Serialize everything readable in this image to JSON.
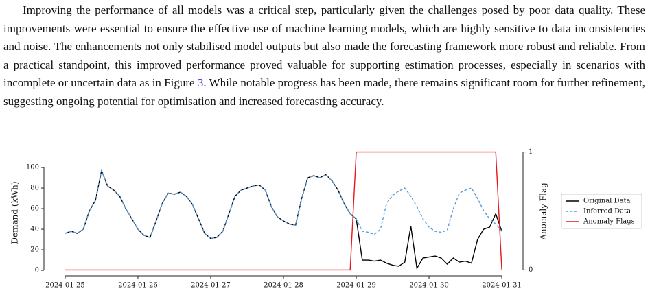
{
  "paragraph": [
    "Improving the performance of all models was a critical step, particularly given the challenges posed by poor data quality. These improvements were essential to ensure the effective use of machine learning models, which are highly sensitive to data inconsistencies and noise. The enhancements not only stabilised model outputs but also made the forecasting framework more robust and reliable. From a practical standpoint, this improved performance proved valuable for supporting estimation processes, especially in scenarios with incomplete or uncertain data as in Figure ",
    "3",
    ". While notable progress has been made, there remains significant room for further refinement, suggesting ongoing potential for optimisation and increased forecasting accuracy."
  ],
  "chart_data": {
    "type": "line",
    "ylabel": "Demand (kWh)",
    "y2label": "Anomaly Flag",
    "x": [
      0,
      2,
      4,
      6,
      8,
      10,
      12,
      14,
      16,
      18,
      20,
      22,
      24,
      26,
      28,
      30,
      32,
      34,
      36,
      38,
      40,
      42,
      44,
      46,
      48,
      50,
      52,
      54,
      56,
      58,
      60,
      62,
      64,
      66,
      68,
      70,
      72,
      74,
      76,
      78,
      80,
      82,
      84,
      86,
      88,
      90,
      92,
      94,
      96,
      98,
      100,
      102,
      104,
      106,
      108,
      110,
      112,
      114,
      116,
      118,
      120,
      122,
      124,
      126,
      128,
      130,
      132,
      134,
      136,
      138,
      140,
      142,
      144
    ],
    "xlim": [
      -7,
      151
    ],
    "xticks": [
      {
        "value": 0,
        "label": "2024-01-25"
      },
      {
        "value": 24,
        "label": "2024-01-26"
      },
      {
        "value": 48,
        "label": "2024-01-27"
      },
      {
        "value": 72,
        "label": "2024-01-28"
      },
      {
        "value": 96,
        "label": "2024-01-29"
      },
      {
        "value": 120,
        "label": "2024-01-30"
      },
      {
        "value": 144,
        "label": "2024-01-31"
      }
    ],
    "ylim": [
      -5.3,
      120.7
    ],
    "yticks": [
      0,
      20,
      40,
      60,
      80,
      100
    ],
    "y2lim": [
      -0.05,
      1.05
    ],
    "y2ticks": [
      0,
      1
    ],
    "legend": "right",
    "series": [
      {
        "name": "Original Data",
        "color": "#000000",
        "style": "solid",
        "values": [
          36,
          38,
          36,
          40,
          58,
          68,
          97,
          82,
          78,
          72,
          60,
          50,
          40,
          34,
          32,
          48,
          65,
          75,
          74,
          76,
          72,
          64,
          50,
          36,
          31,
          32,
          38,
          55,
          72,
          78,
          80,
          82,
          83,
          78,
          62,
          52,
          48,
          45,
          44,
          70,
          90,
          92,
          90,
          93,
          87,
          78,
          65,
          55,
          50,
          10,
          10,
          9,
          10,
          7,
          5,
          4,
          8,
          43,
          2,
          12,
          13,
          14,
          12,
          6,
          12,
          8,
          9,
          7,
          30,
          40,
          42,
          55,
          38
        ]
      },
      {
        "name": "Inferred Data",
        "color": "#5b9bd5",
        "style": "dashed",
        "values": [
          36,
          38,
          36,
          40,
          58,
          68,
          97,
          82,
          78,
          72,
          60,
          50,
          40,
          34,
          32,
          48,
          65,
          75,
          74,
          76,
          72,
          64,
          50,
          36,
          31,
          32,
          38,
          55,
          72,
          78,
          80,
          82,
          83,
          78,
          62,
          52,
          48,
          45,
          44,
          70,
          90,
          92,
          90,
          93,
          87,
          78,
          65,
          55,
          50,
          38,
          37,
          35,
          40,
          65,
          73,
          77,
          80,
          72,
          62,
          50,
          42,
          38,
          37,
          39,
          60,
          75,
          78,
          80,
          70,
          58,
          50,
          45,
          38
        ]
      },
      {
        "name": "Anomaly Flags",
        "color": "#e41a1c",
        "style": "solid",
        "axis": "y2",
        "values": [
          0,
          0,
          0,
          0,
          0,
          0,
          0,
          0,
          0,
          0,
          0,
          0,
          0,
          0,
          0,
          0,
          0,
          0,
          0,
          0,
          0,
          0,
          0,
          0,
          0,
          0,
          0,
          0,
          0,
          0,
          0,
          0,
          0,
          0,
          0,
          0,
          0,
          0,
          0,
          0,
          0,
          0,
          0,
          0,
          0,
          0,
          0,
          0,
          1,
          1,
          1,
          1,
          1,
          1,
          1,
          1,
          1,
          1,
          1,
          1,
          1,
          1,
          1,
          1,
          1,
          1,
          1,
          1,
          1,
          1,
          1,
          1,
          0
        ]
      }
    ]
  }
}
